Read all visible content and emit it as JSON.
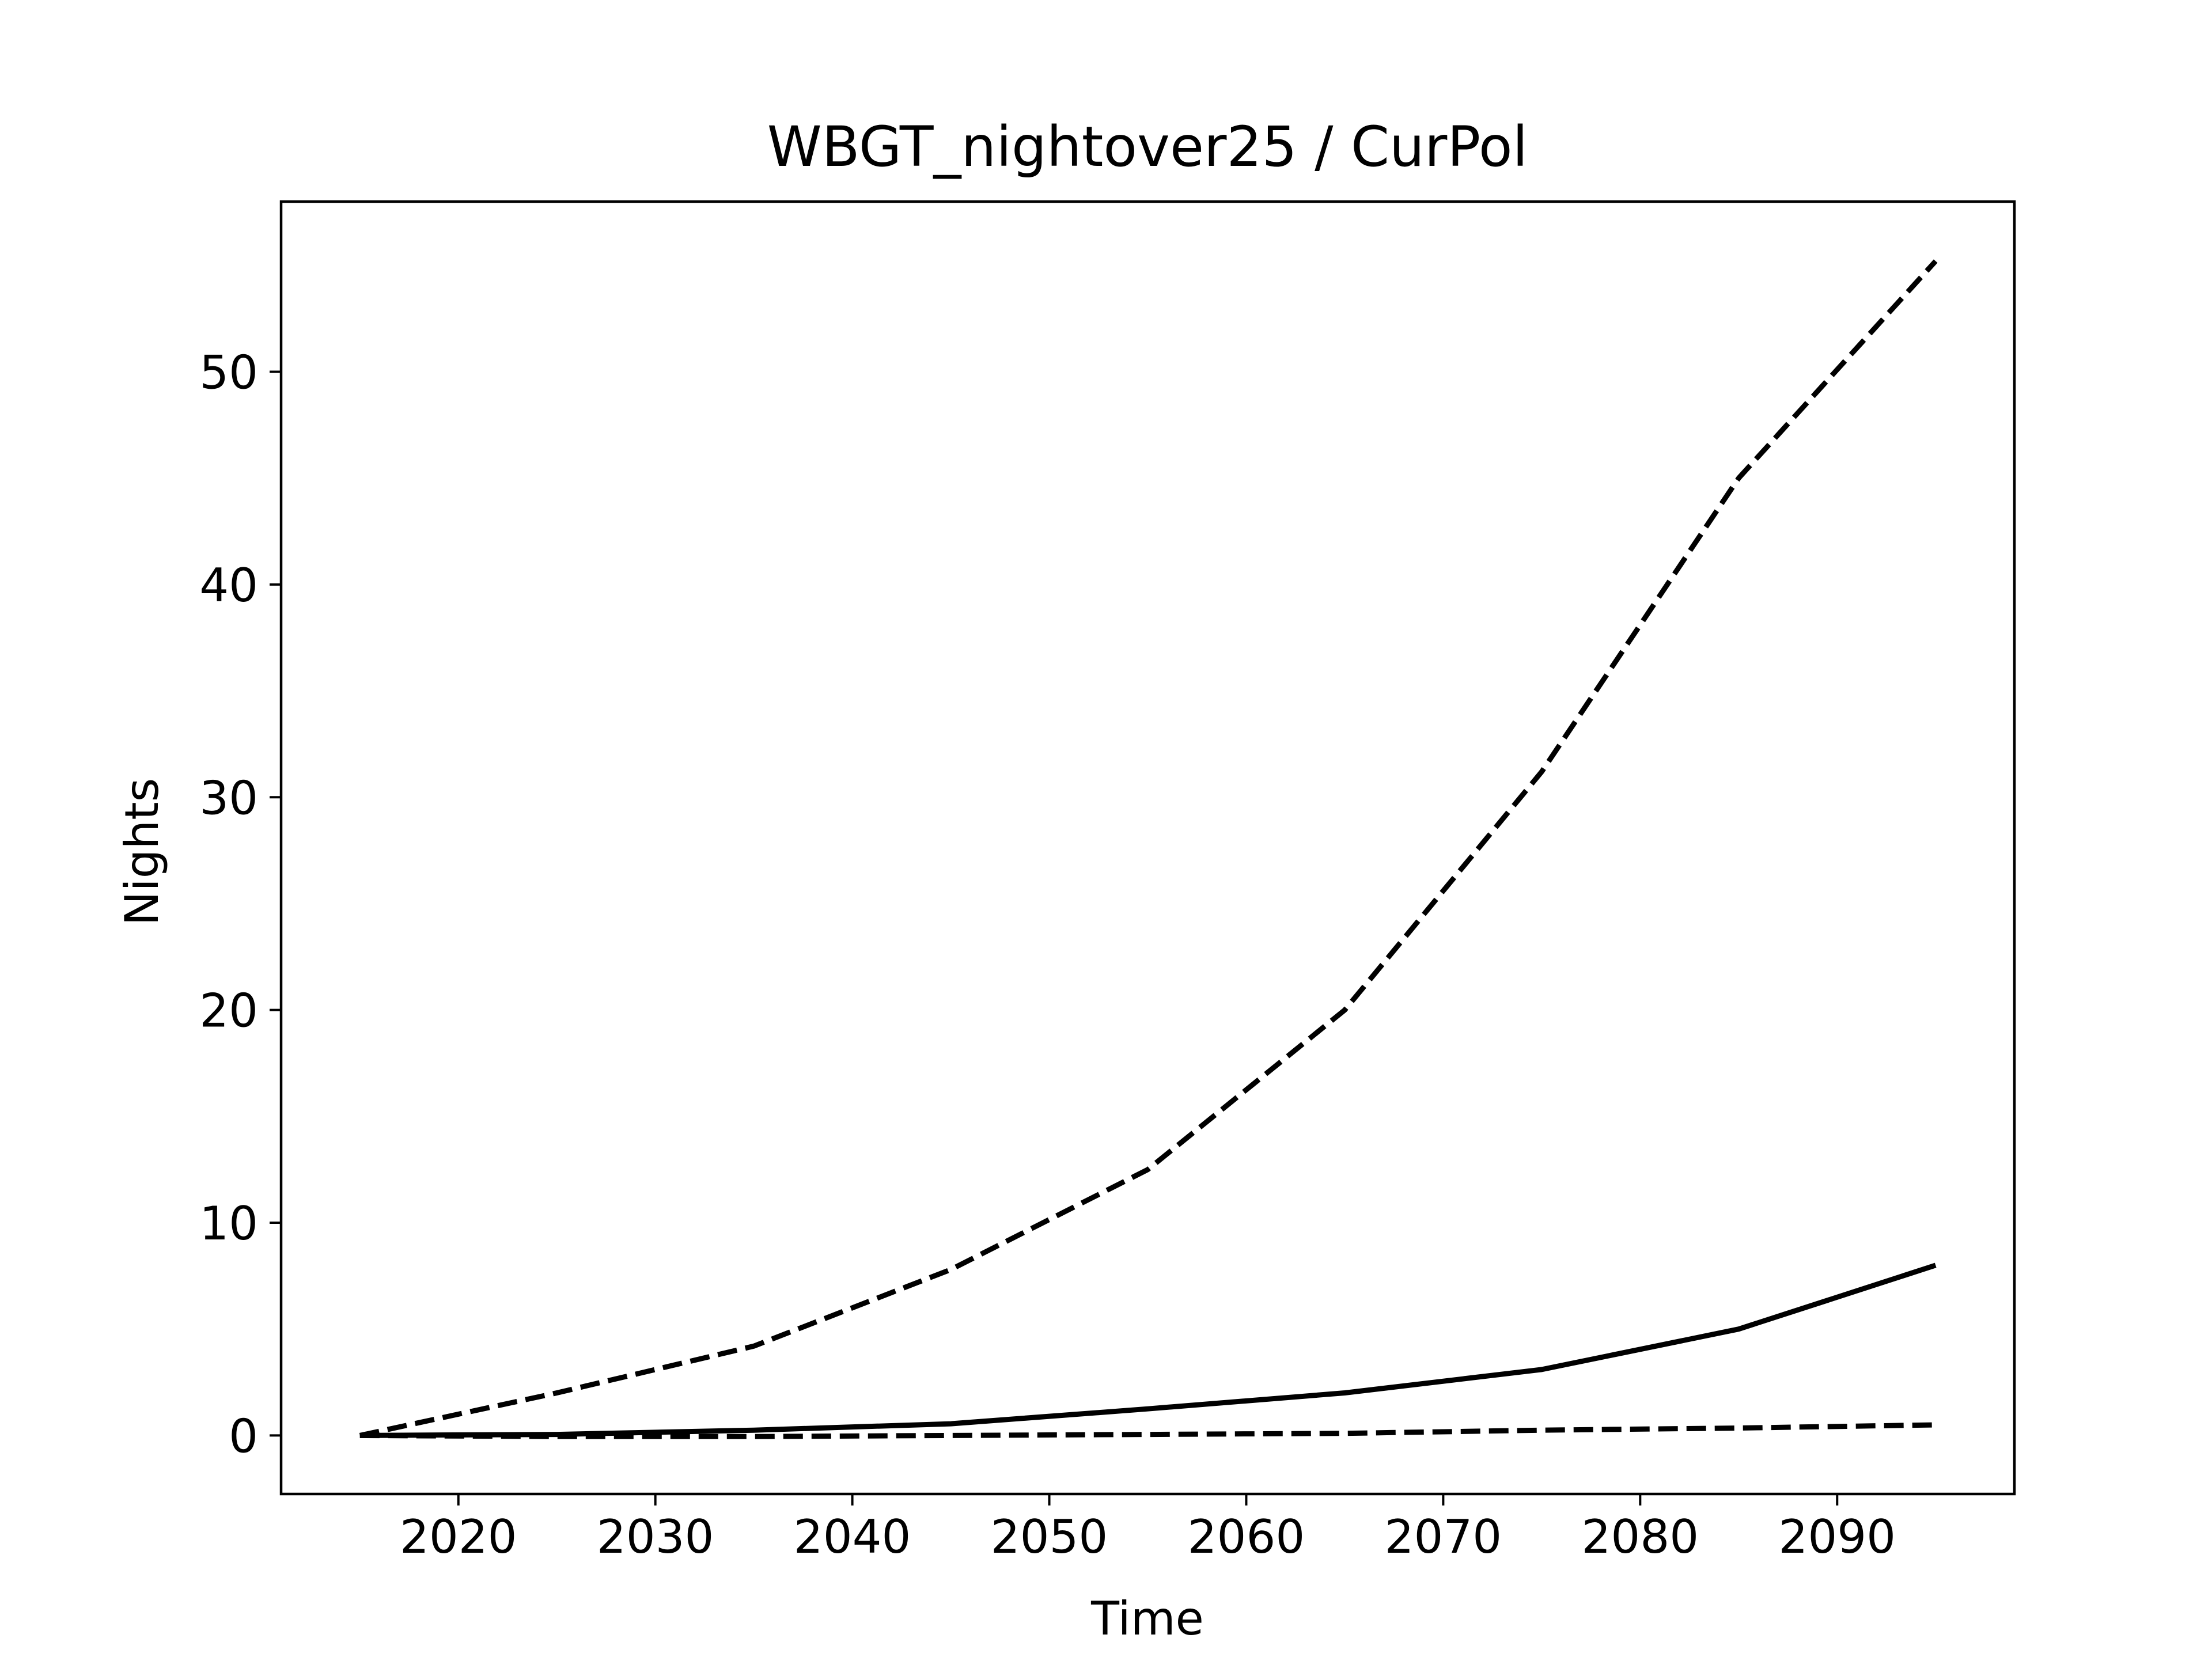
{
  "chart_data": {
    "type": "line",
    "title": "WBGT_nightover25 / CurPol",
    "xlabel": "Time",
    "ylabel": "Nights",
    "xlim": [
      2011,
      2099
    ],
    "ylim": [
      -2.75,
      58.0
    ],
    "xticks": [
      2020,
      2030,
      2040,
      2050,
      2060,
      2070,
      2080,
      2090
    ],
    "yticks": [
      0,
      10,
      20,
      30,
      40,
      50
    ],
    "grid": false,
    "legend": "none",
    "line_color": "#000000",
    "x": [
      2015,
      2025,
      2035,
      2045,
      2055,
      2065,
      2075,
      2085,
      2095
    ],
    "series": [
      {
        "style": "dashed",
        "values": [
          0,
          2.0,
          4.2,
          7.8,
          12.5,
          20.0,
          31.2,
          45.0,
          55.2
        ]
      },
      {
        "style": "solid",
        "values": [
          0,
          0.05,
          0.25,
          0.55,
          1.25,
          2.0,
          3.1,
          5.0,
          8.0
        ]
      },
      {
        "style": "dashed",
        "values": [
          0,
          -0.05,
          -0.05,
          0.0,
          0.05,
          0.1,
          0.25,
          0.35,
          0.5
        ]
      }
    ]
  }
}
